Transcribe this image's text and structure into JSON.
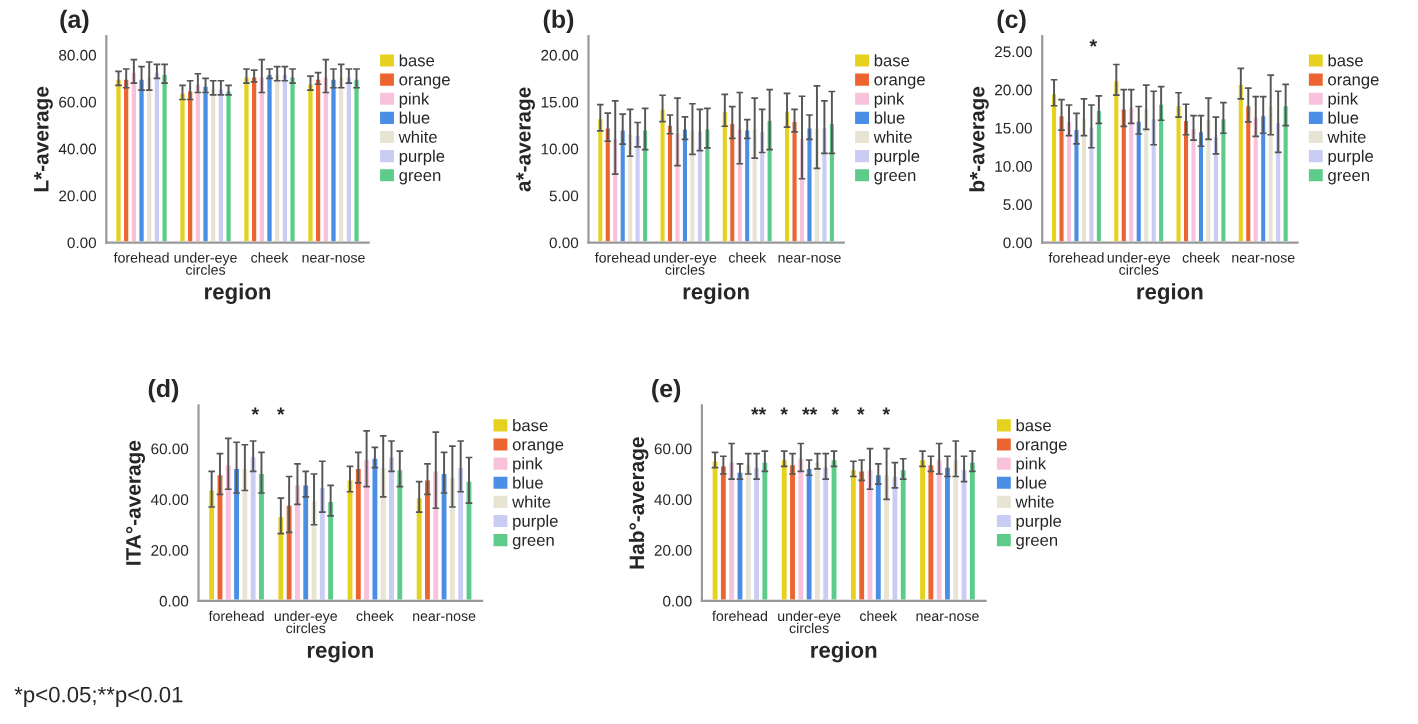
{
  "chart_data": [
    {
      "type": "bar",
      "title": "(a)",
      "xlabel": "region",
      "ylabel": "L*-average",
      "categories": [
        "forehead",
        "under-eye circles",
        "cheek",
        "near-nose"
      ],
      "ylim": [
        0,
        88
      ],
      "yticks": [
        {
          "value": 0,
          "label": "0.00"
        },
        {
          "value": 20,
          "label": "20.00"
        },
        {
          "value": 40,
          "label": "40.00"
        },
        {
          "value": 60,
          "label": "60.00"
        },
        {
          "value": 80,
          "label": "80.00"
        }
      ],
      "legend": "right",
      "grid": false,
      "series": [
        {
          "name": "base",
          "color": "#e6d21e",
          "values": [
            70,
            64,
            71,
            68
          ],
          "errors": [
            3,
            3,
            3,
            3
          ]
        },
        {
          "name": "orange",
          "color": "#ec6530",
          "values": [
            70,
            65,
            71,
            70
          ],
          "errors": [
            4,
            4,
            2.5,
            2.5
          ]
        },
        {
          "name": "pink",
          "color": "#f8c2dc",
          "values": [
            73,
            68,
            71,
            71
          ],
          "errors": [
            5,
            4,
            7,
            7
          ]
        },
        {
          "name": "blue",
          "color": "#4a8ee6",
          "values": [
            70,
            67,
            72,
            70
          ],
          "errors": [
            5,
            3,
            2,
            4
          ]
        },
        {
          "name": "white",
          "color": "#e8e4d4",
          "values": [
            71,
            66,
            72,
            71
          ],
          "errors": [
            6,
            3,
            3,
            5
          ]
        },
        {
          "name": "purple",
          "color": "#c9cdf4",
          "values": [
            73,
            66,
            72,
            71
          ],
          "errors": [
            3,
            3,
            3,
            3
          ]
        },
        {
          "name": "green",
          "color": "#5dcc8a",
          "values": [
            72,
            65,
            71,
            70
          ],
          "errors": [
            4,
            2,
            3,
            4
          ]
        }
      ]
    },
    {
      "type": "bar",
      "title": "(b)",
      "xlabel": "region",
      "ylabel": "a*-average",
      "categories": [
        "forehead",
        "under-eye circles",
        "cheek",
        "near-nose"
      ],
      "ylim": [
        0,
        22
      ],
      "yticks": [
        {
          "value": 0,
          "label": "0.00"
        },
        {
          "value": 5,
          "label": "5.00"
        },
        {
          "value": 10,
          "label": "10.00"
        },
        {
          "value": 15,
          "label": "15.00"
        },
        {
          "value": 20,
          "label": "20.00"
        }
      ],
      "legend": "right",
      "grid": false,
      "series": [
        {
          "name": "base",
          "color": "#e6d21e",
          "values": [
            13.3,
            14.3,
            14.1,
            14.1
          ],
          "errors": [
            1.4,
            1.4,
            1.7,
            1.8
          ]
        },
        {
          "name": "orange",
          "color": "#ec6530",
          "values": [
            12.3,
            12.6,
            12.8,
            13.0
          ],
          "errors": [
            1.5,
            1.0,
            1.7,
            1.2
          ]
        },
        {
          "name": "pink",
          "color": "#f8c2dc",
          "values": [
            11.2,
            11.8,
            12.2,
            11.2
          ],
          "errors": [
            3.9,
            3.6,
            3.8,
            4.4
          ]
        },
        {
          "name": "blue",
          "color": "#4a8ee6",
          "values": [
            12.1,
            12.2,
            12.1,
            12.3
          ],
          "errors": [
            1.6,
            1.2,
            1.0,
            1.3
          ]
        },
        {
          "name": "white",
          "color": "#e8e4d4",
          "values": [
            11.7,
            12.1,
            12.2,
            12.3
          ],
          "errors": [
            2.5,
            2.7,
            3.2,
            4.4
          ]
        },
        {
          "name": "purple",
          "color": "#c9cdf4",
          "values": [
            11.5,
            12.0,
            11.9,
            12.3
          ],
          "errors": [
            1.3,
            2.2,
            2.3,
            2.8
          ]
        },
        {
          "name": "green",
          "color": "#5dcc8a",
          "values": [
            12.1,
            12.2,
            13.1,
            12.8
          ],
          "errors": [
            2.2,
            2.1,
            3.2,
            3.3
          ]
        }
      ]
    },
    {
      "type": "bar",
      "title": "(c)",
      "xlabel": "region",
      "ylabel": "b*-average",
      "categories": [
        "forehead",
        "under-eye circles",
        "cheek",
        "near-nose"
      ],
      "ylim": [
        0,
        27
      ],
      "yticks": [
        {
          "value": 0,
          "label": "0.00"
        },
        {
          "value": 5,
          "label": "5.00"
        },
        {
          "value": 10,
          "label": "10.00"
        },
        {
          "value": 15,
          "label": "15.00"
        },
        {
          "value": 20,
          "label": "20.00"
        },
        {
          "value": 25,
          "label": "25.00"
        }
      ],
      "legend": "right",
      "grid": false,
      "annotations": [
        "*"
      ],
      "series": [
        {
          "name": "base",
          "color": "#e6d21e",
          "values": [
            19.6,
            21.3,
            18.0,
            20.8
          ],
          "errors": [
            1.7,
            2.0,
            1.6,
            2.0
          ]
        },
        {
          "name": "orange",
          "color": "#ec6530",
          "values": [
            16.7,
            17.6,
            16.1,
            18.0
          ],
          "errors": [
            2.0,
            2.4,
            2.0,
            2.2
          ]
        },
        {
          "name": "pink",
          "color": "#f8c2dc",
          "values": [
            16.0,
            17.8,
            15.0,
            16.5
          ],
          "errors": [
            2.0,
            2.2,
            1.6,
            2.6
          ]
        },
        {
          "name": "blue",
          "color": "#4a8ee6",
          "values": [
            14.9,
            16.0,
            14.6,
            16.7
          ],
          "errors": [
            2.0,
            1.8,
            2.0,
            2.4
          ]
        },
        {
          "name": "white",
          "color": "#e8e4d4",
          "values": [
            16.4,
            17.7,
            16.2,
            18.0
          ],
          "errors": [
            2.4,
            2.9,
            2.7,
            3.9
          ]
        },
        {
          "name": "purple",
          "color": "#c9cdf4",
          "values": [
            15.2,
            16.3,
            14.0,
            15.8
          ],
          "errors": [
            2.8,
            3.5,
            2.4,
            4.0
          ]
        },
        {
          "name": "green",
          "color": "#5dcc8a",
          "values": [
            17.4,
            18.2,
            16.3,
            18.0
          ],
          "errors": [
            1.8,
            2.2,
            2.0,
            2.7
          ]
        }
      ]
    },
    {
      "type": "bar",
      "title": "(d)",
      "xlabel": "region",
      "ylabel": "ITA°-average",
      "categories": [
        "forehead",
        "under-eye circles",
        "cheek",
        "near-nose"
      ],
      "ylim": [
        0,
        77
      ],
      "yticks": [
        {
          "value": 0,
          "label": "0.00"
        },
        {
          "value": 20,
          "label": "20.00"
        },
        {
          "value": 40,
          "label": "40.00"
        },
        {
          "value": 60,
          "label": "60.00"
        }
      ],
      "legend": "right",
      "grid": false,
      "annotations": [
        "*",
        "*",
        "*p<0.05;**p<0.01"
      ],
      "series": [
        {
          "name": "base",
          "color": "#e6d21e",
          "values": [
            44,
            33.5,
            48,
            41
          ],
          "errors": [
            7,
            7,
            5,
            6
          ]
        },
        {
          "name": "orange",
          "color": "#ec6530",
          "values": [
            50,
            38,
            52.5,
            48
          ],
          "errors": [
            8,
            11,
            6,
            6
          ]
        },
        {
          "name": "pink",
          "color": "#f8c2dc",
          "values": [
            54,
            46,
            56,
            51.5
          ],
          "errors": [
            10,
            8,
            11,
            15
          ]
        },
        {
          "name": "blue",
          "color": "#4a8ee6",
          "values": [
            52.5,
            46,
            56.5,
            50.5
          ],
          "errors": [
            10,
            5,
            4,
            8
          ]
        },
        {
          "name": "white",
          "color": "#e8e4d4",
          "values": [
            52.5,
            40,
            53,
            49
          ],
          "errors": [
            9,
            10,
            12,
            12
          ]
        },
        {
          "name": "purple",
          "color": "#c9cdf4",
          "values": [
            57,
            45,
            57,
            53
          ],
          "errors": [
            6,
            10,
            6,
            10
          ]
        },
        {
          "name": "green",
          "color": "#5dcc8a",
          "values": [
            50.5,
            39.5,
            52,
            47.5
          ],
          "errors": [
            8,
            6,
            7,
            9
          ]
        }
      ]
    },
    {
      "type": "bar",
      "title": "(e)",
      "xlabel": "region",
      "ylabel": "Hab°-average",
      "categories": [
        "forehead",
        "under-eye circles",
        "cheek",
        "near-nose"
      ],
      "ylim": [
        0,
        77
      ],
      "yticks": [
        {
          "value": 0,
          "label": "0.00"
        },
        {
          "value": 20,
          "label": "20.00"
        },
        {
          "value": 40,
          "label": "40.00"
        },
        {
          "value": 60,
          "label": "60.00"
        }
      ],
      "legend": "right",
      "grid": false,
      "annotations": [
        "**",
        "*",
        "**",
        "*",
        "*",
        "*"
      ],
      "series": [
        {
          "name": "base",
          "color": "#e6d21e",
          "values": [
            55.5,
            56,
            52,
            56
          ],
          "errors": [
            3,
            3,
            3,
            3
          ]
        },
        {
          "name": "orange",
          "color": "#ec6530",
          "values": [
            53.5,
            54,
            51.5,
            54
          ],
          "errors": [
            3.5,
            4,
            4,
            3
          ]
        },
        {
          "name": "pink",
          "color": "#f8c2dc",
          "values": [
            55,
            56.5,
            52,
            56
          ],
          "errors": [
            7,
            5.5,
            8,
            6
          ]
        },
        {
          "name": "blue",
          "color": "#4a8ee6",
          "values": [
            51,
            52.5,
            50,
            53
          ],
          "errors": [
            3,
            3,
            4,
            4
          ]
        },
        {
          "name": "white",
          "color": "#e8e4d4",
          "values": [
            54,
            55,
            50,
            56
          ],
          "errors": [
            4,
            3,
            10,
            7
          ]
        },
        {
          "name": "purple",
          "color": "#c9cdf4",
          "values": [
            53,
            53,
            49.5,
            52
          ],
          "errors": [
            5,
            5,
            5,
            5
          ]
        },
        {
          "name": "green",
          "color": "#5dcc8a",
          "values": [
            55,
            56,
            52,
            55
          ],
          "errors": [
            4,
            3,
            4,
            4
          ]
        }
      ]
    }
  ]
}
